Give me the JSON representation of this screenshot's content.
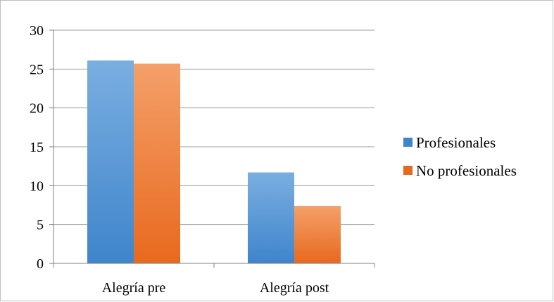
{
  "colors": {
    "series_profesionales_light": "#7aaee0",
    "series_profesionales_dark": "#3f85cc",
    "series_no_profesionales_light": "#f4a06a",
    "series_no_profesionales_dark": "#e8691e",
    "gridline": "#9e9e9e",
    "axis": "#7f7f7f"
  },
  "chart_data": {
    "type": "bar",
    "categories": [
      "Alegría pre",
      "Alegría post"
    ],
    "series": [
      {
        "name": "Profesionales",
        "values": [
          26.1,
          11.7
        ]
      },
      {
        "name": "No profesionales",
        "values": [
          25.7,
          7.4
        ]
      }
    ],
    "yticks": [
      "0",
      "5",
      "10",
      "15",
      "20",
      "25",
      "30"
    ],
    "ylim": [
      0,
      30
    ],
    "grid": true,
    "legend": "right",
    "title": "",
    "xlabel": "",
    "ylabel": ""
  }
}
